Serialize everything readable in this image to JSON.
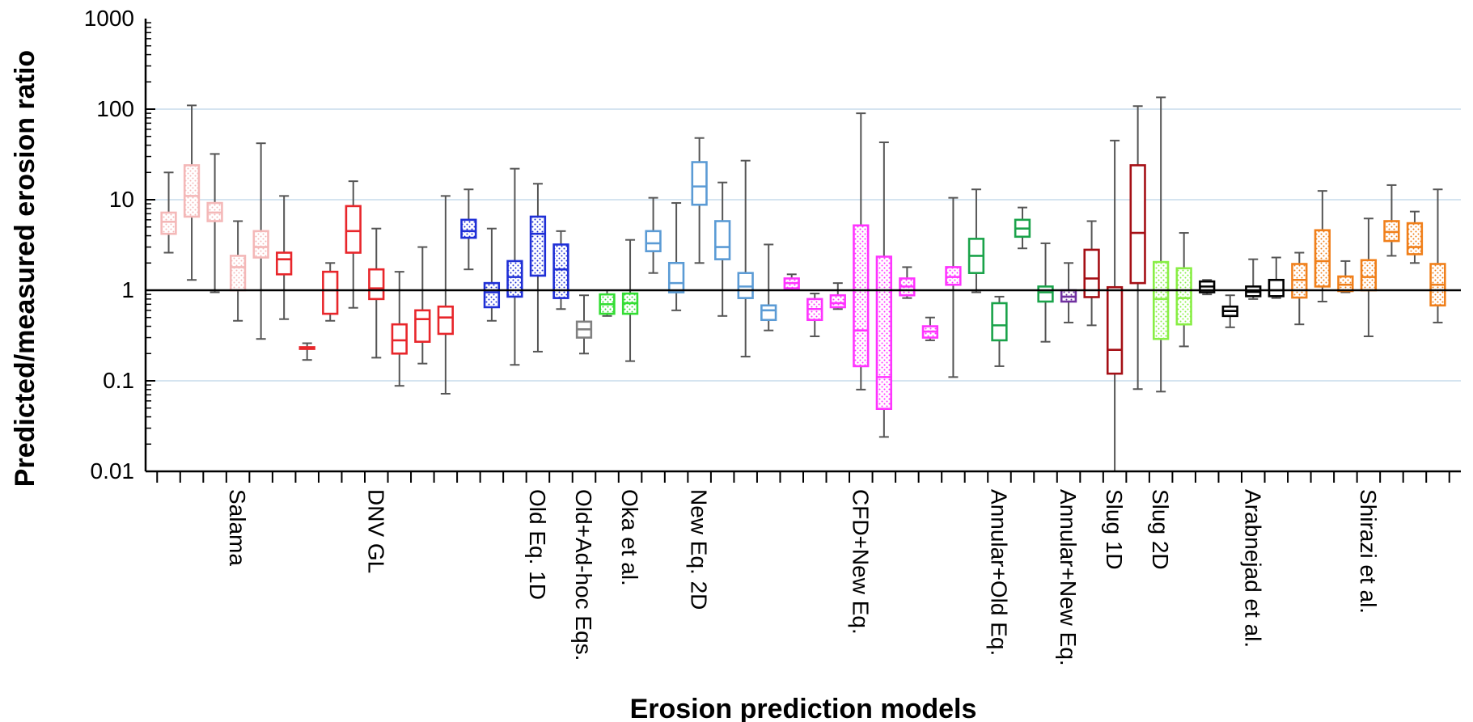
{
  "chart_data": {
    "type": "boxplot",
    "title": "",
    "xlabel": "Erosion prediction models",
    "ylabel": "Predicted/measured erosion ratio",
    "y_scale": "log",
    "ylim": [
      0.01,
      1000
    ],
    "y_ticks": [
      "0.01",
      "0.1",
      "1",
      "10",
      "100",
      "1000"
    ],
    "grid": "horizontal",
    "reference_line": 1,
    "legend": "none",
    "groups": [
      {
        "label": "Salama",
        "color": "#f4b8b8",
        "tick_index": 3
      },
      {
        "label": "DNV GL",
        "color": "#e8262b",
        "tick_index": 9
      },
      {
        "label": "Old Eq. 1D",
        "color": "#1f2fd6",
        "tick_index": 16
      },
      {
        "label": "Old+Ad-hoc Eqs.",
        "color": "#808080",
        "tick_index": 18
      },
      {
        "label": "Oka et al.",
        "color": "#33dd33",
        "tick_index": 20
      },
      {
        "label": "New Eq. 2D",
        "color": "#5b9bd5",
        "tick_index": 23
      },
      {
        "label": "CFD+New Eq.",
        "color": "#ff33ff",
        "tick_index": 30
      },
      {
        "label": "Annular+Old Eq.",
        "color": "#1aa34a",
        "tick_index": 36
      },
      {
        "label": "Annular+New Eq.",
        "color": "#7030a0",
        "tick_index": 39
      },
      {
        "label": "Slug 1D",
        "color": "#a50f15",
        "tick_index": 41
      },
      {
        "label": "Slug 2D",
        "color": "#88ee44",
        "tick_index": 43
      },
      {
        "label": "Arabnejad et al.",
        "color": "#000000",
        "tick_index": 47
      },
      {
        "label": "Shirazi et al.",
        "color": "#f07f1a",
        "tick_index": 52
      }
    ],
    "boxes": [
      {
        "min": 2.6,
        "q1": 4.2,
        "median": 5.7,
        "q3": 7.2,
        "max": 20,
        "color": "#f4b8b8",
        "pattern": true
      },
      {
        "min": 1.3,
        "q1": 6.5,
        "median": 11,
        "q3": 24,
        "max": 110,
        "color": "#f4b8b8",
        "pattern": true
      },
      {
        "min": 0.95,
        "q1": 5.8,
        "median": 7.2,
        "q3": 9.2,
        "max": 32,
        "color": "#f4b8b8",
        "pattern": true
      },
      {
        "min": 0.46,
        "q1": 1.0,
        "median": 1.8,
        "q3": 2.4,
        "max": 5.8,
        "color": "#f4b8b8",
        "pattern": true
      },
      {
        "min": 0.29,
        "q1": 2.3,
        "median": 3.0,
        "q3": 4.5,
        "max": 42,
        "color": "#f4b8b8",
        "pattern": true
      },
      {
        "min": 0.48,
        "q1": 1.5,
        "median": 2.2,
        "q3": 2.6,
        "max": 11,
        "color": "#e8262b",
        "pattern": false
      },
      {
        "min": 0.17,
        "q1": 0.225,
        "median": 0.23,
        "q3": 0.235,
        "max": 0.26,
        "color": "#e8262b",
        "pattern": false
      },
      {
        "min": 0.46,
        "q1": 0.55,
        "median": 1.0,
        "q3": 1.6,
        "max": 2.0,
        "color": "#e8262b",
        "pattern": false
      },
      {
        "min": 0.64,
        "q1": 2.6,
        "median": 4.5,
        "q3": 8.5,
        "max": 16,
        "color": "#e8262b",
        "pattern": false
      },
      {
        "min": 0.18,
        "q1": 0.8,
        "median": 1.05,
        "q3": 1.7,
        "max": 4.8,
        "color": "#e8262b",
        "pattern": false
      },
      {
        "min": 0.088,
        "q1": 0.2,
        "median": 0.28,
        "q3": 0.42,
        "max": 1.6,
        "color": "#e8262b",
        "pattern": false
      },
      {
        "min": 0.155,
        "q1": 0.27,
        "median": 0.48,
        "q3": 0.6,
        "max": 3.0,
        "color": "#e8262b",
        "pattern": false
      },
      {
        "min": 0.072,
        "q1": 0.33,
        "median": 0.5,
        "q3": 0.66,
        "max": 11,
        "color": "#e8262b",
        "pattern": false
      },
      {
        "min": 1.7,
        "q1": 3.8,
        "median": 4.5,
        "q3": 6.0,
        "max": 13,
        "color": "#1f2fd6",
        "pattern": true
      },
      {
        "min": 0.46,
        "q1": 0.65,
        "median": 0.95,
        "q3": 1.2,
        "max": 4.8,
        "color": "#1f2fd6",
        "pattern": true
      },
      {
        "min": 0.15,
        "q1": 0.85,
        "median": 1.4,
        "q3": 2.1,
        "max": 22,
        "color": "#1f2fd6",
        "pattern": true
      },
      {
        "min": 0.21,
        "q1": 1.45,
        "median": 4.2,
        "q3": 6.5,
        "max": 15,
        "color": "#1f2fd6",
        "pattern": true
      },
      {
        "min": 0.62,
        "q1": 0.82,
        "median": 1.7,
        "q3": 3.2,
        "max": 4.5,
        "color": "#1f2fd6",
        "pattern": true
      },
      {
        "min": 0.2,
        "q1": 0.3,
        "median": 0.37,
        "q3": 0.45,
        "max": 0.88,
        "color": "#808080",
        "pattern": false
      },
      {
        "min": 0.52,
        "q1": 0.55,
        "median": 0.7,
        "q3": 0.9,
        "max": 1.0,
        "color": "#33dd33",
        "pattern": true
      },
      {
        "min": 0.165,
        "q1": 0.55,
        "median": 0.72,
        "q3": 0.92,
        "max": 3.6,
        "color": "#33dd33",
        "pattern": true
      },
      {
        "min": 1.55,
        "q1": 2.7,
        "median": 3.3,
        "q3": 4.5,
        "max": 10.5,
        "color": "#5b9bd5",
        "pattern": false
      },
      {
        "min": 0.6,
        "q1": 0.95,
        "median": 1.2,
        "q3": 2.0,
        "max": 9.2,
        "color": "#5b9bd5",
        "pattern": false
      },
      {
        "min": 2.0,
        "q1": 8.8,
        "median": 14,
        "q3": 26,
        "max": 48,
        "color": "#5b9bd5",
        "pattern": false
      },
      {
        "min": 0.52,
        "q1": 2.2,
        "median": 3.0,
        "q3": 5.8,
        "max": 15.5,
        "color": "#5b9bd5",
        "pattern": false
      },
      {
        "min": 0.185,
        "q1": 0.82,
        "median": 1.1,
        "q3": 1.55,
        "max": 27,
        "color": "#5b9bd5",
        "pattern": false
      },
      {
        "min": 0.36,
        "q1": 0.47,
        "median": 0.6,
        "q3": 0.68,
        "max": 3.2,
        "color": "#5b9bd5",
        "pattern": false
      },
      {
        "min": 1.0,
        "q1": 1.05,
        "median": 1.2,
        "q3": 1.35,
        "max": 1.5,
        "color": "#ff33ff",
        "pattern": true
      },
      {
        "min": 0.31,
        "q1": 0.47,
        "median": 0.62,
        "q3": 0.8,
        "max": 0.92,
        "color": "#ff33ff",
        "pattern": true
      },
      {
        "min": 0.62,
        "q1": 0.65,
        "median": 0.72,
        "q3": 0.88,
        "max": 1.2,
        "color": "#ff33ff",
        "pattern": true
      },
      {
        "min": 0.08,
        "q1": 0.145,
        "median": 0.36,
        "q3": 5.2,
        "max": 90,
        "color": "#ff33ff",
        "pattern": true
      },
      {
        "min": 0.024,
        "q1": 0.049,
        "median": 0.11,
        "q3": 2.35,
        "max": 43,
        "color": "#ff33ff",
        "pattern": true
      },
      {
        "min": 0.82,
        "q1": 0.88,
        "median": 1.1,
        "q3": 1.35,
        "max": 1.8,
        "color": "#ff33ff",
        "pattern": true
      },
      {
        "min": 0.28,
        "q1": 0.3,
        "median": 0.35,
        "q3": 0.4,
        "max": 0.5,
        "color": "#ff33ff",
        "pattern": true
      },
      {
        "min": 0.11,
        "q1": 1.15,
        "median": 1.4,
        "q3": 1.8,
        "max": 10.5,
        "color": "#ff33ff",
        "pattern": true
      },
      {
        "min": 0.95,
        "q1": 1.55,
        "median": 2.4,
        "q3": 3.7,
        "max": 13,
        "color": "#1aa34a",
        "pattern": false
      },
      {
        "min": 0.145,
        "q1": 0.28,
        "median": 0.41,
        "q3": 0.72,
        "max": 0.85,
        "color": "#1aa34a",
        "pattern": false
      },
      {
        "min": 2.9,
        "q1": 3.9,
        "median": 4.8,
        "q3": 6.0,
        "max": 8.2,
        "color": "#1aa34a",
        "pattern": false
      },
      {
        "min": 0.27,
        "q1": 0.75,
        "median": 0.95,
        "q3": 1.1,
        "max": 3.3,
        "color": "#1aa34a",
        "pattern": false
      },
      {
        "min": 0.44,
        "q1": 0.75,
        "median": 0.85,
        "q3": 1.0,
        "max": 2.0,
        "color": "#7030a0",
        "pattern": true
      },
      {
        "min": 0.41,
        "q1": 0.84,
        "median": 1.35,
        "q3": 2.8,
        "max": 5.8,
        "color": "#a50f15",
        "pattern": false
      },
      {
        "min": 0.01,
        "q1": 0.12,
        "median": 0.22,
        "q3": 1.08,
        "max": 45,
        "color": "#a50f15",
        "pattern": false
      },
      {
        "min": 0.081,
        "q1": 1.2,
        "median": 4.3,
        "q3": 24,
        "max": 108,
        "color": "#a50f15",
        "pattern": false
      },
      {
        "min": 0.076,
        "q1": 0.29,
        "median": 0.8,
        "q3": 2.05,
        "max": 135,
        "color": "#88ee44",
        "pattern": true
      },
      {
        "min": 0.24,
        "q1": 0.42,
        "median": 0.82,
        "q3": 1.75,
        "max": 4.3,
        "color": "#88ee44",
        "pattern": true
      },
      {
        "min": 0.9,
        "q1": 0.95,
        "median": 1.1,
        "q3": 1.25,
        "max": 1.3,
        "color": "#000000",
        "pattern": false
      },
      {
        "min": 0.39,
        "q1": 0.52,
        "median": 0.59,
        "q3": 0.66,
        "max": 0.88,
        "color": "#000000",
        "pattern": false
      },
      {
        "min": 0.8,
        "q1": 0.86,
        "median": 0.96,
        "q3": 1.1,
        "max": 2.2,
        "color": "#000000",
        "pattern": false
      },
      {
        "min": 0.82,
        "q1": 0.86,
        "median": 1.0,
        "q3": 1.3,
        "max": 2.3,
        "color": "#000000",
        "pattern": false
      },
      {
        "min": 0.42,
        "q1": 0.83,
        "median": 1.3,
        "q3": 1.95,
        "max": 2.6,
        "color": "#f07f1a",
        "pattern": true
      },
      {
        "min": 0.75,
        "q1": 1.1,
        "median": 2.1,
        "q3": 4.6,
        "max": 12.5,
        "color": "#f07f1a",
        "pattern": true
      },
      {
        "min": 0.95,
        "q1": 0.98,
        "median": 1.15,
        "q3": 1.42,
        "max": 2.1,
        "color": "#f07f1a",
        "pattern": true
      },
      {
        "min": 0.31,
        "q1": 1.0,
        "median": 1.4,
        "q3": 2.15,
        "max": 6.2,
        "color": "#f07f1a",
        "pattern": true
      },
      {
        "min": 2.4,
        "q1": 3.5,
        "median": 4.4,
        "q3": 5.8,
        "max": 14.5,
        "color": "#f07f1a",
        "pattern": true
      },
      {
        "min": 2.0,
        "q1": 2.5,
        "median": 3.0,
        "q3": 5.5,
        "max": 7.4,
        "color": "#f07f1a",
        "pattern": true
      },
      {
        "min": 0.44,
        "q1": 0.68,
        "median": 1.15,
        "q3": 1.95,
        "max": 13,
        "color": "#f07f1a",
        "pattern": true
      }
    ]
  }
}
